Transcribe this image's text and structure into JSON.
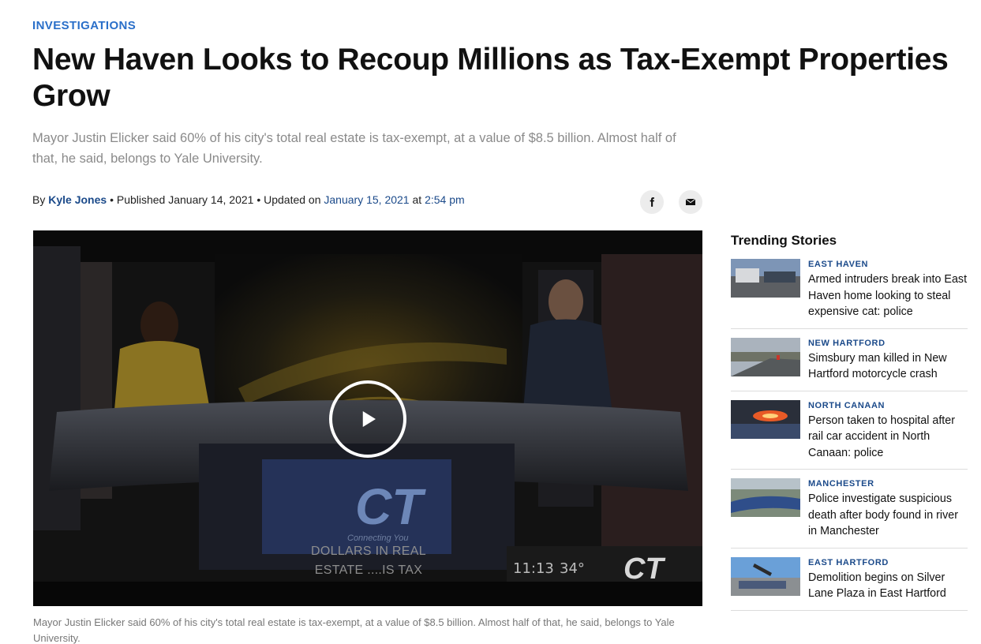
{
  "article": {
    "category": "INVESTIGATIONS",
    "headline": "New Haven Looks to Recoup Millions as Tax-Exempt Properties Grow",
    "dek": "Mayor Justin Elicker said 60% of his city's total real estate is tax-exempt, at a value of $8.5 billion. Almost half of that, he said, belongs to Yale University.",
    "byline": {
      "by": "By",
      "author": "Kyle Jones",
      "published_label": "• Published January 14, 2021 • Updated on",
      "updated_date": "January 15, 2021",
      "at": "at",
      "updated_time": "2:54 pm"
    },
    "share": {
      "facebook_icon": "facebook-icon",
      "email_icon": "email-icon"
    },
    "video": {
      "overlay_line1": "DOLLARS IN REAL",
      "overlay_line2": "ESTATE ....IS TAX",
      "clock": "11:13",
      "temperature": "34°",
      "bug": "CT",
      "set_logo": "CT",
      "set_tagline": "Connecting You",
      "play_icon": "play-icon"
    },
    "caption": "Mayor Justin Elicker said 60% of his city's total real estate is tax-exempt, at a value of $8.5 billion. Almost half of that, he said, belongs to Yale University."
  },
  "trending": {
    "title": "Trending Stories",
    "items": [
      {
        "location": "EAST HAVEN",
        "headline": "Armed intruders break into East Haven home looking to steal expensive cat: police"
      },
      {
        "location": "NEW HARTFORD",
        "headline": "Simsbury man killed in New Hartford motorcycle crash"
      },
      {
        "location": "NORTH CANAAN",
        "headline": "Person taken to hospital after rail car accident in North Canaan: police"
      },
      {
        "location": "MANCHESTER",
        "headline": "Police investigate suspicious death after body found in river in Manchester"
      },
      {
        "location": "EAST HARTFORD",
        "headline": "Demolition begins on Silver Lane Plaza in East Hartford"
      }
    ]
  },
  "colors": {
    "accent": "#2a6fc9",
    "link": "#1b4a8a",
    "dek": "#8a8a8a"
  }
}
